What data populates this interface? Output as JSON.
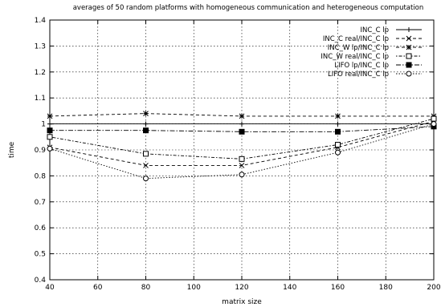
{
  "chart_data": {
    "type": "line",
    "title": "averages of 50 random platforms with homogeneous communication and heterogeneous computation",
    "xlabel": "matrix size",
    "ylabel": "time",
    "x": [
      40,
      80,
      120,
      160,
      200
    ],
    "xlim": [
      40,
      200
    ],
    "ylim": [
      0.4,
      1.4
    ],
    "xticks": [
      "40",
      "60",
      "80",
      "100",
      "120",
      "140",
      "160",
      "180",
      "200"
    ],
    "yticks": [
      "0.4",
      "0.5",
      "0.6",
      "0.7",
      "0.8",
      "0.9",
      "1",
      "1.1",
      "1.2",
      "1.3",
      "1.4"
    ],
    "grid": true,
    "legend_position": "top-right",
    "series": [
      {
        "name": "INC_C lp",
        "values": [
          1.0,
          1.0,
          1.0,
          1.0,
          1.0
        ],
        "marker": "plus",
        "dash": "solid"
      },
      {
        "name": "INC_C real/INC_C lp",
        "values": [
          0.91,
          0.84,
          0.84,
          0.91,
          1.01
        ],
        "marker": "cross",
        "dash": "dashed"
      },
      {
        "name": "INC_W lp/INC_C lp",
        "values": [
          1.03,
          1.04,
          1.03,
          1.03,
          1.03
        ],
        "marker": "star",
        "dash": "dashed"
      },
      {
        "name": "INC_W real/INC_C lp",
        "values": [
          0.95,
          0.885,
          0.865,
          0.92,
          1.02
        ],
        "marker": "square-open",
        "dash": "dotdash"
      },
      {
        "name": "LIFO lp/INC_C lp",
        "values": [
          0.975,
          0.975,
          0.97,
          0.97,
          0.99
        ],
        "marker": "square-filled",
        "dash": "dashdot"
      },
      {
        "name": "LIFO real/INC_C lp",
        "values": [
          0.905,
          0.79,
          0.805,
          0.89,
          1.0
        ],
        "marker": "circle-open",
        "dash": "dotted"
      }
    ]
  }
}
